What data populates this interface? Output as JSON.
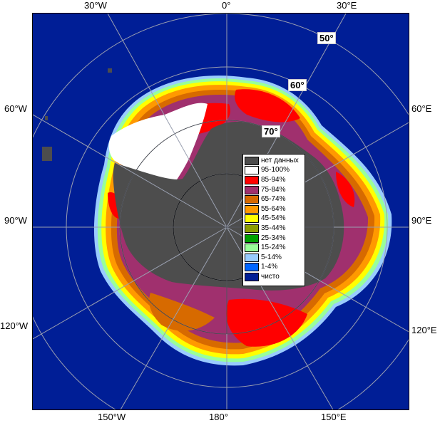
{
  "map": {
    "longitude_labels": {
      "top_left": "30°W",
      "top_center": "0°",
      "top_right": "30°E",
      "left_upper": "60°W",
      "left_middle": "90°W",
      "left_lower": "120°W",
      "right_upper": "60°E",
      "right_middle": "90°E",
      "right_lower": "120°E",
      "bottom_left": "150°W",
      "bottom_center": "180°",
      "bottom_right": "150°E"
    },
    "latitude_labels": {
      "lat50": "50°",
      "lat60": "60°",
      "lat70": "70°"
    }
  },
  "legend": {
    "items": [
      {
        "label": "нет данных",
        "color": "#4d4d4d"
      },
      {
        "label": "95-100%",
        "color": "#ffffff"
      },
      {
        "label": "85-94%",
        "color": "#ff0000"
      },
      {
        "label": "75-84%",
        "color": "#a0306e"
      },
      {
        "label": "65-74%",
        "color": "#d76a00"
      },
      {
        "label": "55-64%",
        "color": "#ff9900"
      },
      {
        "label": "45-54%",
        "color": "#ffff00"
      },
      {
        "label": "35-44%",
        "color": "#8c9c00"
      },
      {
        "label": "25-34%",
        "color": "#00a000"
      },
      {
        "label": "15-24%",
        "color": "#99ff99"
      },
      {
        "label": "5-14%",
        "color": "#99ccff"
      },
      {
        "label": "1-4%",
        "color": "#0066ff"
      },
      {
        "label": "чисто",
        "color": "#001e96"
      }
    ]
  }
}
